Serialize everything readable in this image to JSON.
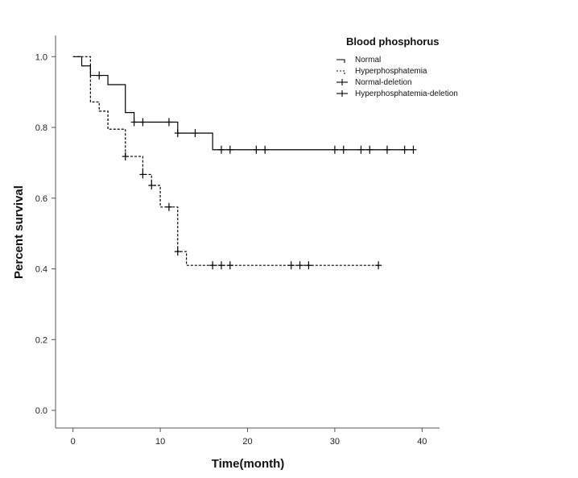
{
  "chart_data": {
    "type": "line",
    "subtype": "kaplan-meier",
    "xlabel": "Time(month)",
    "ylabel": "Percent survival",
    "xlim": [
      -2,
      42
    ],
    "ylim": [
      -0.05,
      1.06
    ],
    "xticks": [
      0,
      10,
      20,
      30,
      40
    ],
    "yticks": [
      0.0,
      0.2,
      0.4,
      0.6,
      0.8,
      1.0
    ],
    "xtick_labels": [
      "0",
      "10",
      "20",
      "30",
      "40"
    ],
    "ytick_labels": [
      "0.0",
      "0.2",
      "0.4",
      "0.6",
      "0.8",
      "1.0"
    ],
    "grid": false,
    "legend": {
      "title": "Blood  phosphorus",
      "position": "top-right",
      "entries": [
        "Normal",
        "Hyperphosphatemia",
        "Normal-deletion",
        "Hyperphosphatemia-deletion"
      ]
    },
    "series": [
      {
        "name": "Normal",
        "line_style": "solid",
        "color": "#000000",
        "steps": [
          [
            0,
            1.0
          ],
          [
            1,
            0.974
          ],
          [
            2,
            0.947
          ],
          [
            4,
            0.921
          ],
          [
            6,
            0.842
          ],
          [
            7,
            0.815
          ],
          [
            12,
            0.784
          ],
          [
            16,
            0.737
          ],
          [
            39,
            0.737
          ]
        ],
        "censored": [
          [
            3,
            0.947
          ],
          [
            7,
            0.815
          ],
          [
            8,
            0.815
          ],
          [
            11,
            0.815
          ],
          [
            12,
            0.784
          ],
          [
            14,
            0.784
          ],
          [
            17,
            0.737
          ],
          [
            18,
            0.737
          ],
          [
            21,
            0.737
          ],
          [
            22,
            0.737
          ],
          [
            30,
            0.737
          ],
          [
            31,
            0.737
          ],
          [
            33,
            0.737
          ],
          [
            34,
            0.737
          ],
          [
            36,
            0.737
          ],
          [
            38,
            0.737
          ],
          [
            39,
            0.737
          ]
        ]
      },
      {
        "name": "Hyperphosphatemia",
        "line_style": "dashed",
        "color": "#000000",
        "steps": [
          [
            0,
            1.0
          ],
          [
            2,
            0.872
          ],
          [
            3,
            0.846
          ],
          [
            4,
            0.795
          ],
          [
            6,
            0.718
          ],
          [
            8,
            0.667
          ],
          [
            9,
            0.636
          ],
          [
            10,
            0.575
          ],
          [
            12,
            0.449
          ],
          [
            13,
            0.41
          ],
          [
            35,
            0.41
          ]
        ],
        "censored": [
          [
            6,
            0.718
          ],
          [
            8,
            0.667
          ],
          [
            9,
            0.636
          ],
          [
            11,
            0.575
          ],
          [
            12,
            0.449
          ],
          [
            16,
            0.41
          ],
          [
            17,
            0.41
          ],
          [
            18,
            0.41
          ],
          [
            25,
            0.41
          ],
          [
            26,
            0.41
          ],
          [
            27,
            0.41
          ],
          [
            35,
            0.41
          ]
        ]
      }
    ]
  }
}
